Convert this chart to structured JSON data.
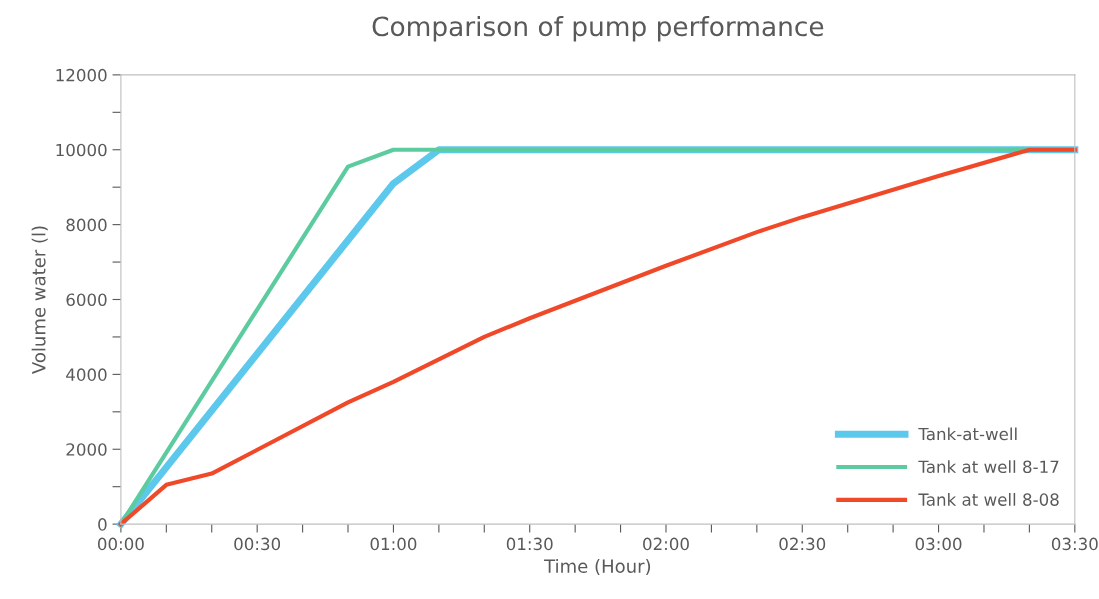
{
  "chart_data": {
    "type": "line",
    "title": "Comparison of pump performance",
    "xlabel": "Time (Hour)",
    "ylabel": "Volume water (l)",
    "series": [
      {
        "name": "Tank-at-well",
        "color": "#5bc8ec",
        "x": [
          0,
          1,
          1.1667,
          3.5
        ],
        "values": [
          0,
          9100,
          10000,
          10000
        ]
      },
      {
        "name": "Tank at well 8-17",
        "color": "#5ccb9f",
        "x": [
          0,
          0.8333,
          1,
          3.3333
        ],
        "values": [
          0,
          9550,
          10000,
          10000
        ]
      },
      {
        "name": "Tank at well 8-08",
        "color": "#f0492a",
        "x": [
          0,
          0.1667,
          0.3333,
          0.8333,
          1,
          1.3333,
          1.5,
          2,
          2.3333,
          2.5,
          3,
          3.3333,
          3.5
        ],
        "values": [
          0,
          1050,
          1350,
          3250,
          3800,
          5000,
          5500,
          6900,
          7800,
          8200,
          9300,
          10000,
          10000
        ]
      }
    ],
    "xlim": [
      0,
      3.5
    ],
    "xticks": [
      {
        "value": 0,
        "label": "00:00"
      },
      {
        "value": 0.1667,
        "label": null
      },
      {
        "value": 0.3333,
        "label": null
      },
      {
        "value": 0.5,
        "label": "00:30"
      },
      {
        "value": 0.6667,
        "label": null
      },
      {
        "value": 0.8333,
        "label": null
      },
      {
        "value": 1,
        "label": "01:00"
      },
      {
        "value": 1.1667,
        "label": null
      },
      {
        "value": 1.3333,
        "label": null
      },
      {
        "value": 1.5,
        "label": "01:30"
      },
      {
        "value": 1.6667,
        "label": null
      },
      {
        "value": 1.8333,
        "label": null
      },
      {
        "value": 2,
        "label": "02:00"
      },
      {
        "value": 2.1667,
        "label": null
      },
      {
        "value": 2.3333,
        "label": null
      },
      {
        "value": 2.5,
        "label": "02:30"
      },
      {
        "value": 2.6667,
        "label": null
      },
      {
        "value": 2.8333,
        "label": null
      },
      {
        "value": 3,
        "label": "03:00"
      },
      {
        "value": 3.1667,
        "label": null
      },
      {
        "value": 3.3333,
        "label": null
      },
      {
        "value": 3.5,
        "label": "03:30"
      }
    ],
    "ylim": [
      0,
      12000
    ],
    "yticks": [
      0,
      {
        "value": 1000,
        "label": null
      },
      2000,
      {
        "value": 3000,
        "label": null
      },
      4000,
      {
        "value": 5000,
        "label": null
      },
      6000,
      {
        "value": 7000,
        "label": null
      },
      8000,
      {
        "value": 9000,
        "label": null
      },
      10000,
      {
        "value": 11000,
        "label": null
      },
      12000
    ],
    "grid": false,
    "legend": "bottom right",
    "marker": "none",
    "line_style": "solid"
  }
}
